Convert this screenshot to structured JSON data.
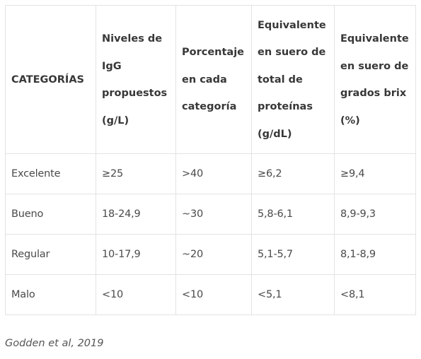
{
  "table": {
    "headers": [
      "CATEGORÍAS",
      "Niveles de IgG propuestos (g/L)",
      "Porcentaje en cada categoría",
      "Equivalente en suero de total de proteínas (g/dL)",
      "Equivalente en suero de grados brix (%)"
    ],
    "rows": [
      [
        "Excelente",
        "≥25",
        ">40",
        "≥6,2",
        "≥9,4"
      ],
      [
        "Bueno",
        "18-24,9",
        "~30",
        "5,8-6,1",
        "8,9-9,3"
      ],
      [
        "Regular",
        "10-17,9",
        "~20",
        "5,1-5,7",
        "8,1-8,9"
      ],
      [
        "Malo",
        "<10",
        "<10",
        "<5,1",
        "<8,1"
      ]
    ]
  },
  "source": "Godden et al, 2019"
}
